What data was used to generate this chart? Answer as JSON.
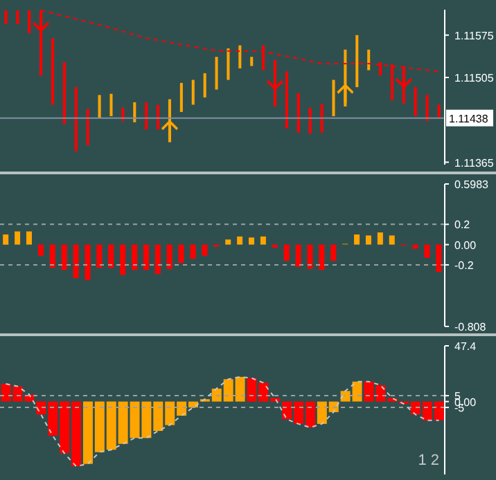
{
  "chart_data": [
    {
      "type": "bar",
      "categories": [
        null,
        null,
        null,
        null,
        null,
        null,
        null,
        null,
        null,
        null,
        null,
        null,
        null,
        null,
        null,
        null,
        null,
        null,
        null,
        null,
        null,
        null,
        null,
        null,
        null,
        null,
        null,
        null,
        null,
        null,
        null,
        null,
        null,
        null,
        null,
        null,
        null,
        null
      ],
      "tick_labels": "y",
      "ylim": [
        1.11361,
        1.11617
      ],
      "yticks": [
        1.11575,
        1.11505,
        1.11365
      ],
      "ref_lines": [
        {
          "axis": "y",
          "value": 1.11438,
          "label": "1.11438",
          "color": "#8090a0"
        }
      ],
      "series": [
        {
          "base": [
            1.11593,
            1.11593,
            1.11578,
            1.11508,
            1.1146,
            1.11428,
            1.11383,
            1.11393,
            1.11438,
            1.11441,
            1.11433,
            1.11431,
            1.11419,
            1.11419,
            1.11398,
            1.11448,
            1.1146,
            1.11472,
            1.11485,
            1.11501,
            1.1152,
            1.11524,
            1.11517,
            1.11457,
            1.11421,
            1.11414,
            1.11412,
            1.11414,
            1.11441,
            1.11457,
            1.11489,
            1.11517,
            1.11508,
            1.11467,
            1.11462,
            1.11441,
            1.11433,
            1.11437
          ],
          "values": [
            0.00023,
            0.00023,
            0.00038,
            0.00108,
            0.0011,
            0.00102,
            0.00106,
            0.0006,
            0.00038,
            0.00037,
            0.00022,
            0.00033,
            0.00045,
            0.00041,
            0.00071,
            0.00048,
            0.00041,
            0.0004,
            0.00054,
            0.00052,
            0.00038,
            0.00015,
            0.00041,
            0.00077,
            0.00094,
            0.00065,
            0.00043,
            0.00047,
            0.0006,
            0.00094,
            0.00086,
            0.00034,
            0.00022,
            0.0006,
            0.00062,
            0.00048,
            0.00043,
            0.00023
          ],
          "colors": [
            "#ff0000",
            "#ff0000",
            "#ff0000",
            "#ff0000",
            "#ff0000",
            "#ff0000",
            "#ff0000",
            "#ff0000",
            "#ffa500",
            "#ffa500",
            "#ff0000",
            "#ffa500",
            "#ff0000",
            "#ff0000",
            "#ffa500",
            "#ffa500",
            "#ffa500",
            "#ffa500",
            "#ffa500",
            "#ffa500",
            "#ffa500",
            "#ffa500",
            "#ff0000",
            "#ff0000",
            "#ff0000",
            "#ff0000",
            "#ff0000",
            "#ff0000",
            "#ffa500",
            "#ffa500",
            "#ffa500",
            "#ffa500",
            "#ff0000",
            "#ff0000",
            "#ff0000",
            "#ff0000",
            "#ff0000",
            "#ff0000"
          ]
        },
        {
          "type": "line",
          "color": "#ff0000",
          "line_style": "dashed",
          "values": [
            null,
            null,
            null,
            1.11616,
            null,
            null,
            null,
            null,
            1.11592,
            null,
            null,
            null,
            1.1157,
            null,
            null,
            null,
            null,
            null,
            1.11549,
            null,
            null,
            null,
            1.11548,
            null,
            null,
            null,
            null,
            1.11528,
            null,
            null,
            null,
            1.11528,
            null,
            null,
            null,
            null,
            null,
            1.11515
          ]
        },
        {
          "type": "scatter",
          "color": "#ff0000",
          "values": [
            null,
            null,
            null,
            1.11596,
            null,
            null,
            null,
            null,
            null,
            null,
            null,
            null,
            null,
            null,
            null,
            null,
            null,
            null,
            null,
            null,
            null,
            null,
            null,
            1.115,
            null,
            null,
            null,
            null,
            null,
            null,
            null,
            null,
            null,
            null,
            1.11503,
            null,
            null,
            null
          ]
        },
        {
          "type": "scatter",
          "color": "#ffa500",
          "values": [
            null,
            null,
            null,
            null,
            null,
            null,
            null,
            null,
            null,
            null,
            null,
            null,
            null,
            null,
            1.11419,
            null,
            null,
            null,
            null,
            null,
            null,
            null,
            null,
            null,
            null,
            null,
            null,
            null,
            null,
            1.11479,
            null,
            null,
            null,
            null,
            null,
            null,
            null,
            null
          ]
        }
      ]
    },
    {
      "type": "bar",
      "categories": [
        null,
        null,
        null,
        null,
        null,
        null,
        null,
        null,
        null,
        null,
        null,
        null,
        null,
        null,
        null,
        null,
        null,
        null,
        null,
        null,
        null,
        null,
        null,
        null,
        null,
        null,
        null,
        null,
        null,
        null,
        null,
        null,
        null,
        null,
        null,
        null,
        null,
        null
      ],
      "tick_labels": "y",
      "ylim": [
        -0.808,
        0.5983
      ],
      "yticks": [
        0.5983,
        0.2,
        {
          "value": 0,
          "label": "0.00"
        },
        -0.2,
        -0.808
      ],
      "ref_lines": [
        {
          "axis": "y",
          "value": 0.2,
          "color": "#a0a0a0",
          "line_style": "dashed"
        },
        {
          "axis": "y",
          "value": -0.2,
          "color": "#a0a0a0",
          "line_style": "dashed"
        }
      ],
      "series": [
        {
          "values": [
            0.1,
            0.13,
            0.13,
            -0.11,
            -0.23,
            -0.25,
            -0.33,
            -0.35,
            -0.23,
            -0.23,
            -0.3,
            -0.25,
            -0.25,
            -0.29,
            -0.24,
            -0.18,
            -0.14,
            -0.11,
            -0.02,
            0.05,
            0.08,
            0.07,
            0.08,
            -0.03,
            -0.16,
            -0.22,
            -0.24,
            -0.25,
            -0.16,
            0.01,
            0.1,
            0.09,
            0.12,
            0.09,
            -0.01,
            -0.04,
            -0.13,
            -0.27
          ],
          "colors": [
            "#ffa500",
            "#ffa500",
            "#ffa500",
            "#ff0000",
            "#ff0000",
            "#ff0000",
            "#ff0000",
            "#ff0000",
            "#ff0000",
            "#ff0000",
            "#ff0000",
            "#ff0000",
            "#ff0000",
            "#ff0000",
            "#ff0000",
            "#ff0000",
            "#ff0000",
            "#ff0000",
            "#ff0000",
            "#ffa500",
            "#ffa500",
            "#ffa500",
            "#ffa500",
            "#ff0000",
            "#ff0000",
            "#ff0000",
            "#ff0000",
            "#ff0000",
            "#ff0000",
            "#a08020",
            "#ffa500",
            "#ffa500",
            "#ffa500",
            "#ffa500",
            "#ff0000",
            "#ff0000",
            "#ff0000",
            "#ff0000"
          ]
        }
      ]
    },
    {
      "type": "bar",
      "categories": [
        null,
        null,
        null,
        null,
        null,
        null,
        null,
        null,
        null,
        null,
        null,
        null,
        null,
        null,
        null,
        null,
        null,
        null,
        null,
        null,
        null,
        null,
        null,
        null,
        null,
        null,
        null,
        null,
        null,
        null,
        null,
        null,
        null,
        null,
        null,
        null,
        null,
        null
      ],
      "tick_labels": "y",
      "ylim": [
        -62,
        47.4
      ],
      "yticks": [
        47.4,
        5,
        {
          "value": 0,
          "label": "0.00"
        },
        -5
      ],
      "ref_lines": [
        {
          "axis": "y",
          "value": 5,
          "color": "#a0a0a0",
          "line_style": "dashed"
        },
        {
          "axis": "y",
          "value": -5,
          "color": "#a0a0a0",
          "line_style": "dashed"
        }
      ],
      "annotations": [
        "1 2"
      ],
      "series": [
        {
          "values": [
            15,
            13,
            6,
            -11,
            -29,
            -44,
            -55,
            -53,
            -43,
            -41,
            -36,
            -31,
            -31,
            -25,
            -20,
            -12,
            -5,
            2,
            11,
            19,
            21,
            20,
            16,
            3,
            -15,
            -19,
            -22,
            -19,
            -9,
            9,
            17,
            17,
            14,
            3,
            -2,
            -11,
            -16,
            -16
          ],
          "colors": [
            "#ff0000",
            "#ff0000",
            "#ff0000",
            "#ff0000",
            "#ff0000",
            "#ff0000",
            "#ff0000",
            "#ffa500",
            "#ffa500",
            "#ffa500",
            "#ffa500",
            "#ffa500",
            "#ffa500",
            "#ffa500",
            "#ffa500",
            "#ffa500",
            "#ffa500",
            "#ffa500",
            "#ffa500",
            "#ffa500",
            "#ffa500",
            "#ff0000",
            "#ff0000",
            "#ff0000",
            "#ff0000",
            "#ff0000",
            "#ff0000",
            "#ffa500",
            "#ffa500",
            "#ffa500",
            "#ffa500",
            "#ff0000",
            "#ff0000",
            "#ff0000",
            "#ff0000",
            "#ff0000",
            "#ff0000",
            "#ff0000"
          ]
        },
        {
          "type": "line",
          "color": "#c8c8c8",
          "line_style": "dashed",
          "values": [
            15,
            13,
            6,
            -11,
            -29,
            -44,
            -55,
            -53,
            -43,
            -41,
            -36,
            -31,
            -31,
            -25,
            -20,
            -12,
            -5,
            2,
            11,
            19,
            21,
            20,
            16,
            3,
            -15,
            -19,
            -22,
            -19,
            -9,
            9,
            17,
            17,
            14,
            3,
            -2,
            -11,
            -16,
            -16
          ]
        }
      ]
    }
  ]
}
